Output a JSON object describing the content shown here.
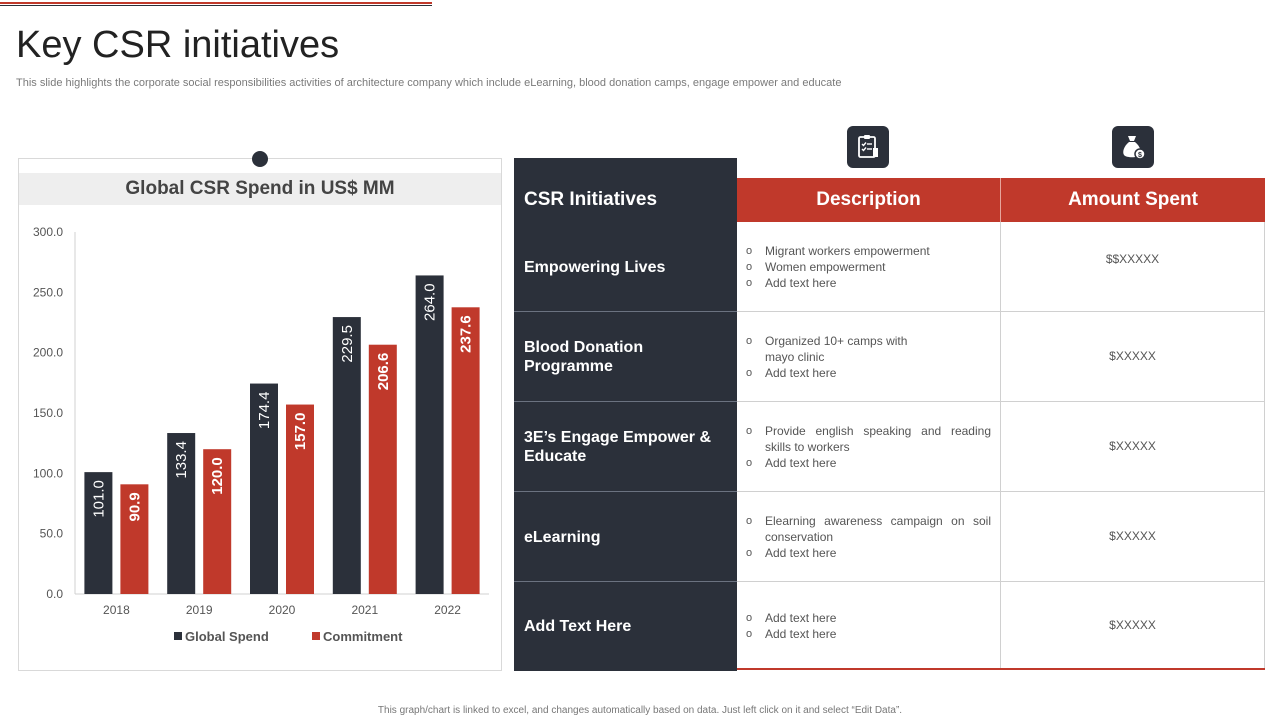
{
  "title": "Key CSR initiatives",
  "subtitle": "This slide highlights the corporate social responsibilities activities of architecture company which include eLearning, blood donation camps, engage empower and educate",
  "footer": "This graph/chart is linked to excel, and changes automatically based on data. Just left click on it and select “Edit Data”.",
  "colors": {
    "dark": "#2b303a",
    "accent": "#c0392b"
  },
  "chart_data": {
    "type": "bar",
    "title": "Global CSR Spend in US$ MM",
    "categories": [
      "2018",
      "2019",
      "2020",
      "2021",
      "2022"
    ],
    "series": [
      {
        "name": "Global Spend",
        "color": "#2b303a",
        "values": [
          101.0,
          133.4,
          174.4,
          229.5,
          264.0
        ]
      },
      {
        "name": "Commitment",
        "color": "#c0392b",
        "values": [
          90.9,
          120.0,
          157.0,
          206.6,
          237.6
        ]
      }
    ],
    "ylim": [
      0,
      300
    ],
    "yticks": [
      "0.0",
      "50.0",
      "100.0",
      "150.0",
      "200.0",
      "250.0",
      "300.0"
    ],
    "xlabel": "",
    "ylabel": "",
    "legend_position": "bottom"
  },
  "table": {
    "headers": {
      "initiative": "CSR Initiatives",
      "description": "Description",
      "amount": "Amount Spent"
    },
    "icons": {
      "description": "clipboard-checklist-icon",
      "amount": "money-bag-icon"
    },
    "rows": [
      {
        "label": "Empowering Lives",
        "items": [
          "Migrant workers empowerment",
          "Women empowerment",
          "Add text here"
        ],
        "amount": "$$XXXXX"
      },
      {
        "label": "Blood Donation Programme",
        "items": [
          "Organized 10+ camps with mayo clinic",
          "Add text here"
        ],
        "amount": "$XXXXX"
      },
      {
        "label": "3E’s Engage Empower & Educate",
        "items": [
          "Provide english speaking and reading skills to workers",
          "Add text here"
        ],
        "amount": "$XXXXX"
      },
      {
        "label": "eLearning",
        "items": [
          "Elearning awareness campaign on soil conservation",
          "Add text here"
        ],
        "amount": "$XXXXX"
      },
      {
        "label": "Add Text Here",
        "items": [
          "Add text here",
          "Add text here"
        ],
        "amount": "$XXXXX"
      }
    ]
  }
}
